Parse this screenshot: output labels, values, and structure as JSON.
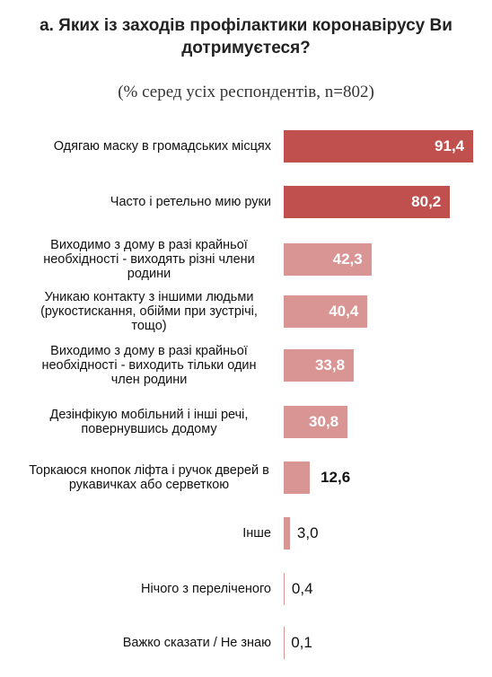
{
  "chart_data": {
    "type": "bar",
    "title": "а. Яких із заходів профілактики коронавірусу Ви дотримуєтеся?",
    "subtitle": "(% серед усіх респондентів, n=802)",
    "categories": [
      "Одягаю маску в громадських місцях",
      "Часто і ретельно мию руки",
      "Виходимо з дому в разі крайньої необхідності - виходять різні члени родини",
      "Уникаю контакту з іншими людьми (рукостискання, обійми при зустрічі, тощо)",
      "Виходимо з дому в разі крайньої необхідності - виходить тільки один член родини",
      "Дезінфікую мобільний і інші речі, повернувшись додому",
      "Торкаюся кнопок ліфта і ручок дверей в рукавичках або серветкою",
      "Інше",
      "Нічого з переліченого",
      "Важко сказати / Не знаю"
    ],
    "values": [
      91.4,
      80.2,
      42.3,
      40.4,
      33.8,
      30.8,
      12.6,
      3.0,
      0.4,
      0.1
    ],
    "value_labels": [
      "91,4",
      "80,2",
      "42,3",
      "40,4",
      "33,8",
      "30,8",
      "12,6",
      "3,0",
      "0,4",
      "0,1"
    ],
    "colors": [
      "#c0504d",
      "#c0504d",
      "#d99594",
      "#d99594",
      "#d99594",
      "#d99594",
      "#d99594",
      "#d99594",
      "#d99594",
      "#d99594"
    ]
  }
}
